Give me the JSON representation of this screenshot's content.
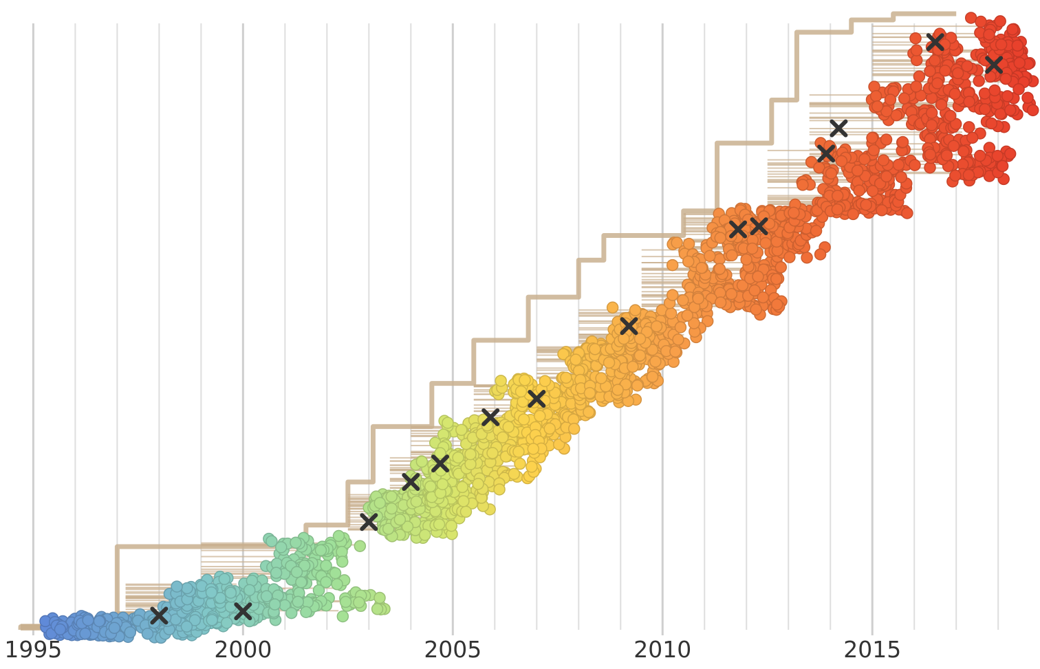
{
  "chart_data": {
    "type": "scatter",
    "title": "",
    "xlabel": "",
    "ylabel": "",
    "xlim": [
      1994.6,
      2018.8
    ],
    "ylim": [
      0,
      1
    ],
    "x_ticks": [
      "1995",
      "2000",
      "2005",
      "2010",
      "2015"
    ],
    "x_tick_values": [
      1995,
      2000,
      2005,
      2010,
      2015
    ],
    "grid": "vertical lines every year",
    "legend": "none",
    "colors": {
      "early": "#5e86d9",
      "green": "#9fe09a",
      "yellow": "#fcd34d",
      "orange": "#f8a24a",
      "red": "#e8402c",
      "branch": "#c9b08f",
      "marker": "#333333"
    },
    "marked_nodes": [
      {
        "x": 1998.0,
        "y": 0.023
      },
      {
        "x": 2000.0,
        "y": 0.03
      },
      {
        "x": 2003.0,
        "y": 0.175
      },
      {
        "x": 2004.0,
        "y": 0.24
      },
      {
        "x": 2004.7,
        "y": 0.27
      },
      {
        "x": 2005.9,
        "y": 0.345
      },
      {
        "x": 2007.0,
        "y": 0.375
      },
      {
        "x": 2009.2,
        "y": 0.493
      },
      {
        "x": 2011.8,
        "y": 0.65
      },
      {
        "x": 2012.3,
        "y": 0.655
      },
      {
        "x": 2013.9,
        "y": 0.773
      },
      {
        "x": 2014.2,
        "y": 0.814
      },
      {
        "x": 2016.5,
        "y": 0.954
      },
      {
        "x": 2017.9,
        "y": 0.917
      }
    ],
    "clusters": [
      {
        "x0": 1994.7,
        "x1": 1997.3,
        "y0": 0.0,
        "y1": 0.01
      },
      {
        "x0": 1997.0,
        "x1": 1999.4,
        "y0": 0.0,
        "y1": 0.03
      },
      {
        "x0": 1997.2,
        "x1": 2001.0,
        "y0": 0.015,
        "y1": 0.075
      },
      {
        "x0": 1999.0,
        "x1": 2003.2,
        "y0": 0.03,
        "y1": 0.145
      },
      {
        "x0": 2002.5,
        "x1": 2004.8,
        "y0": 0.16,
        "y1": 0.22
      },
      {
        "x0": 2003.5,
        "x1": 2005.5,
        "y0": 0.2,
        "y1": 0.28
      },
      {
        "x0": 2004.0,
        "x1": 2006.8,
        "y0": 0.23,
        "y1": 0.33
      },
      {
        "x0": 2005.5,
        "x1": 2008.0,
        "y0": 0.3,
        "y1": 0.4
      },
      {
        "x0": 2007.0,
        "x1": 2009.5,
        "y0": 0.38,
        "y1": 0.46
      },
      {
        "x0": 2008.0,
        "x1": 2011.0,
        "y0": 0.44,
        "y1": 0.52
      },
      {
        "x0": 2009.5,
        "x1": 2012.5,
        "y0": 0.52,
        "y1": 0.62
      },
      {
        "x0": 2010.5,
        "x1": 2013.5,
        "y0": 0.6,
        "y1": 0.68
      },
      {
        "x0": 2012.5,
        "x1": 2015.5,
        "y0": 0.68,
        "y1": 0.78
      },
      {
        "x0": 2013.5,
        "x1": 2018.5,
        "y0": 0.74,
        "y1": 0.87
      },
      {
        "x0": 2015.0,
        "x1": 2018.7,
        "y0": 0.86,
        "y1": 1.0
      }
    ]
  }
}
